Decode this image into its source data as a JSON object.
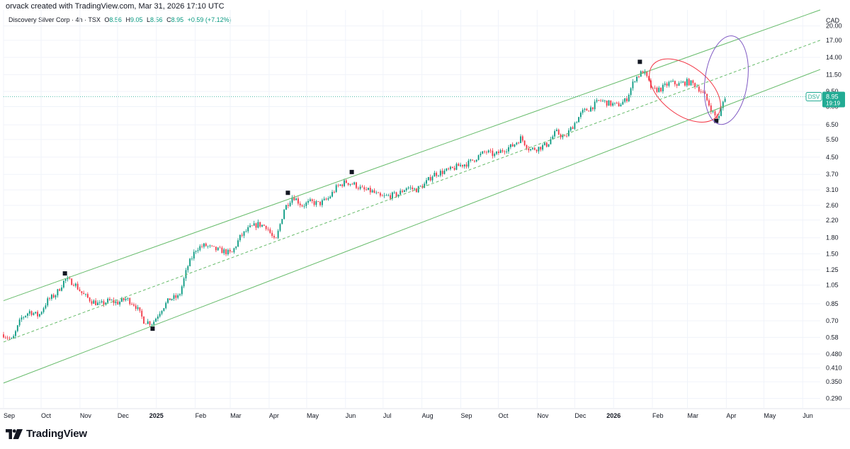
{
  "header": {
    "credit": "orvack created with TradingView.com, Mar 31, 2026 17:10 UTC",
    "symbol_line": "Discovery Silver Corp · 4h · TSX",
    "ohlc": {
      "o_label": "O",
      "o": "8.56",
      "h_label": "H",
      "h": "9.05",
      "l_label": "L",
      "l": "8.56",
      "c_label": "C",
      "c": "8.95",
      "change": "+0.59 (+7.12%)"
    }
  },
  "footer": {
    "logo_name": "TradingView"
  },
  "colors": {
    "up": "#089981",
    "down": "#f23645",
    "channel": "#66bb6a",
    "red_ellipse": "#f23645",
    "purple_ellipse": "#7e57c2",
    "price_badge": "#22ab94"
  },
  "chart_data": {
    "type": "candlestick",
    "scale": "log",
    "currency_label": "CAD",
    "ylim": [
      0.26,
      24.0
    ],
    "xlim": [
      "2024-09-01",
      "2026-06-15"
    ],
    "y_ticks": [
      "20.00",
      "17.00",
      "14.00",
      "11.50",
      "9.50",
      "8.00",
      "6.50",
      "5.50",
      "4.50",
      "3.70",
      "3.10",
      "2.60",
      "2.20",
      "1.80",
      "1.50",
      "1.25",
      "1.05",
      "0.85",
      "0.70",
      "0.58",
      "0.480",
      "0.410",
      "0.350",
      "0.290"
    ],
    "x_ticks": [
      {
        "date": "2024-09-01",
        "label": "Sep",
        "bold": false
      },
      {
        "date": "2024-10-01",
        "label": "Oct",
        "bold": false
      },
      {
        "date": "2024-11-01",
        "label": "Nov",
        "bold": false
      },
      {
        "date": "2024-12-01",
        "label": "Dec",
        "bold": false
      },
      {
        "date": "2025-01-01",
        "label": "2025",
        "bold": true
      },
      {
        "date": "2025-02-01",
        "label": "Feb",
        "bold": false
      },
      {
        "date": "2025-03-01",
        "label": "Mar",
        "bold": false
      },
      {
        "date": "2025-04-01",
        "label": "Apr",
        "bold": false
      },
      {
        "date": "2025-05-01",
        "label": "May",
        "bold": false
      },
      {
        "date": "2025-06-01",
        "label": "Jun",
        "bold": false
      },
      {
        "date": "2025-07-01",
        "label": "Jul",
        "bold": false
      },
      {
        "date": "2025-08-01",
        "label": "Aug",
        "bold": false
      },
      {
        "date": "2025-09-01",
        "label": "Sep",
        "bold": false
      },
      {
        "date": "2025-10-01",
        "label": "Oct",
        "bold": false
      },
      {
        "date": "2025-11-01",
        "label": "Nov",
        "bold": false
      },
      {
        "date": "2025-12-01",
        "label": "Dec",
        "bold": false
      },
      {
        "date": "2026-01-01",
        "label": "2026",
        "bold": true
      },
      {
        "date": "2026-02-01",
        "label": "Feb",
        "bold": false
      },
      {
        "date": "2026-03-01",
        "label": "Mar",
        "bold": false
      },
      {
        "date": "2026-04-01",
        "label": "Apr",
        "bold": false
      },
      {
        "date": "2026-05-01",
        "label": "May",
        "bold": false
      },
      {
        "date": "2026-06-01",
        "label": "Jun",
        "bold": false
      }
    ],
    "price_path": [
      [
        "2024-09-01",
        0.6
      ],
      [
        "2024-09-08",
        0.56
      ],
      [
        "2024-09-15",
        0.72
      ],
      [
        "2024-09-22",
        0.78
      ],
      [
        "2024-09-29",
        0.74
      ],
      [
        "2024-10-06",
        0.88
      ],
      [
        "2024-10-13",
        0.95
      ],
      [
        "2024-10-20",
        1.12
      ],
      [
        "2024-10-27",
        1.08
      ],
      [
        "2024-11-03",
        0.95
      ],
      [
        "2024-11-10",
        0.88
      ],
      [
        "2024-11-17",
        0.84
      ],
      [
        "2024-11-24",
        0.88
      ],
      [
        "2024-12-01",
        0.86
      ],
      [
        "2024-12-08",
        0.9
      ],
      [
        "2024-12-15",
        0.84
      ],
      [
        "2024-12-22",
        0.7
      ],
      [
        "2024-12-29",
        0.68
      ],
      [
        "2025-01-05",
        0.8
      ],
      [
        "2025-01-12",
        0.9
      ],
      [
        "2025-01-19",
        0.92
      ],
      [
        "2025-01-26",
        1.3
      ],
      [
        "2025-02-02",
        1.6
      ],
      [
        "2025-02-09",
        1.65
      ],
      [
        "2025-02-16",
        1.58
      ],
      [
        "2025-02-23",
        1.55
      ],
      [
        "2025-03-02",
        1.5
      ],
      [
        "2025-03-09",
        1.82
      ],
      [
        "2025-03-16",
        2.0
      ],
      [
        "2025-03-23",
        2.1
      ],
      [
        "2025-03-30",
        2.05
      ],
      [
        "2025-04-06",
        1.7
      ],
      [
        "2025-04-13",
        2.5
      ],
      [
        "2025-04-20",
        2.9
      ],
      [
        "2025-04-27",
        2.6
      ],
      [
        "2025-05-04",
        2.7
      ],
      [
        "2025-05-11",
        2.65
      ],
      [
        "2025-05-18",
        2.8
      ],
      [
        "2025-05-25",
        3.2
      ],
      [
        "2025-06-01",
        3.4
      ],
      [
        "2025-06-08",
        3.3
      ],
      [
        "2025-06-15",
        3.1
      ],
      [
        "2025-06-22",
        3.05
      ],
      [
        "2025-06-29",
        2.85
      ],
      [
        "2025-07-06",
        2.9
      ],
      [
        "2025-07-13",
        2.95
      ],
      [
        "2025-07-20",
        3.2
      ],
      [
        "2025-07-27",
        3.1
      ],
      [
        "2025-08-03",
        3.3
      ],
      [
        "2025-08-10",
        3.7
      ],
      [
        "2025-08-17",
        3.8
      ],
      [
        "2025-08-24",
        3.9
      ],
      [
        "2025-08-31",
        4.1
      ],
      [
        "2025-09-07",
        4.2
      ],
      [
        "2025-09-14",
        4.5
      ],
      [
        "2025-09-21",
        4.8
      ],
      [
        "2025-09-28",
        4.6
      ],
      [
        "2025-10-05",
        4.9
      ],
      [
        "2025-10-12",
        5.1
      ],
      [
        "2025-10-19",
        5.6
      ],
      [
        "2025-10-26",
        4.9
      ],
      [
        "2025-11-02",
        5.0
      ],
      [
        "2025-11-09",
        5.2
      ],
      [
        "2025-11-16",
        6.0
      ],
      [
        "2025-11-23",
        5.6
      ],
      [
        "2025-11-30",
        6.5
      ],
      [
        "2025-12-07",
        7.5
      ],
      [
        "2025-12-14",
        7.9
      ],
      [
        "2025-12-21",
        8.6
      ],
      [
        "2025-12-28",
        8.3
      ],
      [
        "2026-01-04",
        8.1
      ],
      [
        "2026-01-11",
        8.6
      ],
      [
        "2026-01-18",
        11.0
      ],
      [
        "2026-01-25",
        12.0
      ],
      [
        "2026-02-01",
        9.6
      ],
      [
        "2026-02-08",
        9.8
      ],
      [
        "2026-02-15",
        10.5
      ],
      [
        "2026-02-22",
        10.3
      ],
      [
        "2026-03-01",
        10.6
      ],
      [
        "2026-03-08",
        10.2
      ],
      [
        "2026-03-15",
        9.0
      ],
      [
        "2026-03-22",
        7.3
      ],
      [
        "2026-03-26",
        7.0
      ],
      [
        "2026-03-29",
        8.3
      ],
      [
        "2026-03-31",
        8.95
      ]
    ],
    "channel": {
      "upper": [
        [
          "2024-09-01",
          0.88
        ],
        [
          "2026-06-15",
          24.0
        ]
      ],
      "mid": [
        [
          "2024-09-01",
          0.55
        ],
        [
          "2026-06-15",
          17.0
        ]
      ],
      "lower": [
        [
          "2024-09-01",
          0.345
        ],
        [
          "2026-06-15",
          12.2
        ]
      ]
    },
    "pivot_markers": [
      {
        "date": "2024-10-20",
        "price": 1.2,
        "side": "high"
      },
      {
        "date": "2024-12-29",
        "price": 0.64,
        "side": "low"
      },
      {
        "date": "2025-04-16",
        "price": 3.0,
        "side": "high"
      },
      {
        "date": "2025-06-06",
        "price": 3.8,
        "side": "high"
      },
      {
        "date": "2026-01-22",
        "price": 13.3,
        "side": "high"
      },
      {
        "date": "2026-03-24",
        "price": 6.8,
        "side": "low"
      }
    ],
    "ellipses": [
      {
        "color": "red",
        "center_date": "2026-02-27",
        "center_price": 9.6,
        "angle_deg": 38
      },
      {
        "color": "purple",
        "center_date": "2026-04-01",
        "center_price": 10.8,
        "angle_deg": 8
      }
    ],
    "last_price": {
      "symbol": "DSV",
      "value": "8.95",
      "countdown": "19:19"
    }
  }
}
